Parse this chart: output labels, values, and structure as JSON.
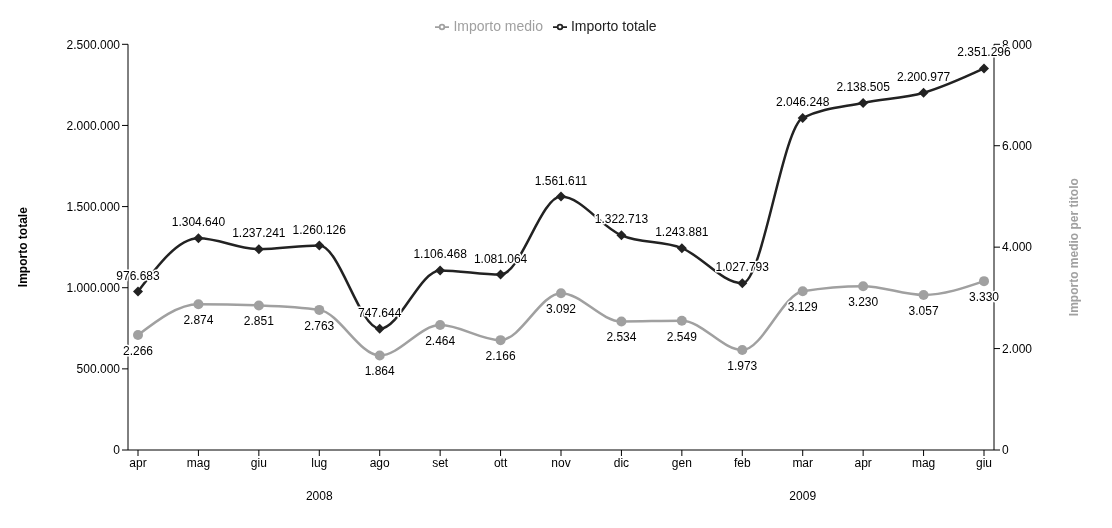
{
  "chart_data": {
    "type": "line",
    "categories": [
      "apr",
      "mag",
      "giu",
      "lug",
      "ago",
      "set",
      "ott",
      "nov",
      "dic",
      "gen",
      "feb",
      "mar",
      "apr",
      "mag",
      "giu"
    ],
    "ylabel": "Importo totale",
    "y2label": "Importo medio per titolo",
    "ylim": [
      0,
      2500000
    ],
    "yticks": [
      0,
      {
        "value": 500000,
        "label": "500.000"
      },
      {
        "value": 1000000,
        "label": "1.000.000"
      },
      {
        "value": 1500000,
        "label": "1.500.000"
      },
      {
        "value": 2000000,
        "label": "2.000.000"
      },
      {
        "value": 2500000,
        "label": "2.500.000"
      }
    ],
    "y2lim": [
      0,
      8000
    ],
    "y2ticks": [
      0,
      {
        "value": 2000,
        "label": "2.000"
      },
      {
        "value": 4000,
        "label": "4.000"
      },
      {
        "value": 6000,
        "label": "6.000"
      },
      {
        "value": 8000,
        "label": "8.000"
      }
    ],
    "series": [
      {
        "name": "Importo totale",
        "color": "#222222",
        "marker": "diamond",
        "values": [
          976683,
          1304640,
          1237241,
          1260126,
          747644,
          1106468,
          1081064,
          1561611,
          1322713,
          1243881,
          1027793,
          2046248,
          2138505,
          2200977,
          2351296
        ],
        "value_labels": [
          "976.683",
          "1.304.640",
          "1.237.241",
          "1.260.126",
          "747.644",
          "1.106.468",
          "1.081.064",
          "1.561.611",
          "1.322.713",
          "1.243.881",
          "1.027.793",
          "2.046.248",
          "2.138.505",
          "2.200.977",
          "2.351.296"
        ]
      },
      {
        "name": "Importo medio",
        "color": "#a0a0a0",
        "marker": "circle",
        "axis": "y2",
        "values": [
          2266,
          2874,
          2851,
          2763,
          1864,
          2464,
          2166,
          3092,
          2534,
          2549,
          1973,
          3129,
          3230,
          3057,
          3330
        ],
        "value_labels": [
          "2.266",
          "2.874",
          "2.851",
          "2.763",
          "1.864",
          "2.464",
          "2.166",
          "3.092",
          "2.534",
          "2.549",
          "1.973",
          "3.129",
          "3.230",
          "3.057",
          "3.330"
        ]
      }
    ],
    "annotations": [
      "2008",
      "2009"
    ],
    "legend": "top",
    "grid": false
  }
}
